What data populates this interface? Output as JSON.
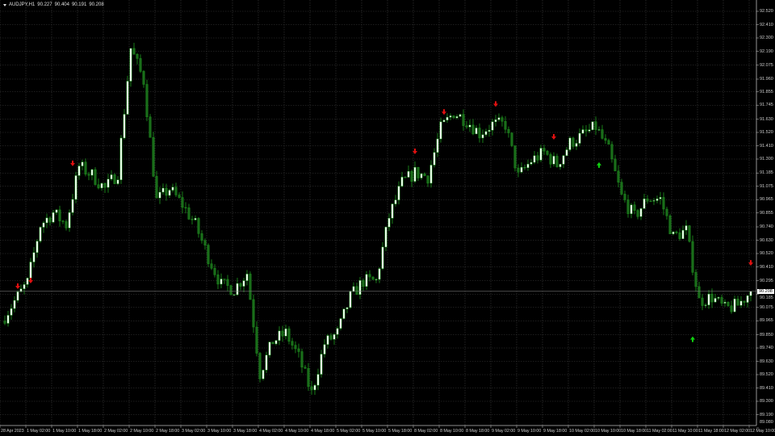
{
  "header": {
    "symbol": "AUDJPY,H1",
    "open": "90.227",
    "high": "90.404",
    "low": "90.191",
    "close": "90.208"
  },
  "colors": {
    "background": "#000000",
    "grid": "#3a3a3a",
    "candle": "#1f9a1f",
    "bull_body": "#e8ffe8",
    "bear_body": "#1a6e1a",
    "sell_arrow": "#e01010",
    "buy_arrow": "#10d010"
  },
  "chart_data": {
    "type": "candlestick",
    "timeframe": "H1",
    "current_price": "90.208",
    "ylim": [
      89.08,
      92.52
    ],
    "y_ticks": [
      "92.520",
      "92.410",
      "92.300",
      "92.190",
      "92.075",
      "91.960",
      "91.855",
      "91.745",
      "91.630",
      "91.520",
      "91.410",
      "91.300",
      "91.185",
      "91.075",
      "90.965",
      "90.855",
      "90.740",
      "90.630",
      "90.520",
      "90.410",
      "90.295",
      "90.185",
      "90.075",
      "89.965",
      "89.850",
      "89.740",
      "89.630",
      "89.520",
      "89.410",
      "89.300",
      "89.190",
      "89.080"
    ],
    "x_ticks": [
      "28 Apr 2023",
      "1 May 02:00",
      "1 May 10:00",
      "1 May 18:00",
      "2 May 02:00",
      "2 May 10:00",
      "2 May 18:00",
      "3 May 02:00",
      "3 May 10:00",
      "3 May 18:00",
      "4 May 02:00",
      "4 May 10:00",
      "4 May 18:00",
      "5 May 02:00",
      "5 May 10:00",
      "5 May 18:00",
      "8 May 02:00",
      "8 May 10:00",
      "8 May 18:00",
      "9 May 02:00",
      "9 May 10:00",
      "9 May 18:00",
      "10 May 02:00",
      "10 May 10:00",
      "10 May 18:00",
      "11 May 02:00",
      "11 May 10:00",
      "11 May 18:00",
      "12 May 02:00",
      "12 May 10:00"
    ],
    "closes_every_4_bars": [
      89.962,
      90.128,
      90.28,
      90.757,
      90.857,
      90.757,
      91.241,
      91.168,
      91.055,
      91.188,
      92.215,
      91.95,
      90.956,
      91.055,
      90.923,
      90.757,
      90.492,
      90.26,
      90.227,
      90.36,
      89.531,
      89.796,
      89.863,
      89.664,
      89.365,
      89.776,
      89.863,
      90.161,
      90.293,
      90.293,
      90.823,
      91.102,
      91.188,
      91.155,
      91.552,
      91.685,
      91.619,
      91.513,
      91.586,
      91.586,
      91.155,
      91.287,
      91.354,
      91.254,
      91.433,
      91.499,
      91.566,
      91.367,
      90.989,
      90.823,
      90.976,
      90.969,
      90.658,
      90.711,
      90.128,
      90.161,
      90.061,
      90.094,
      90.208
    ],
    "signals": [
      {
        "type": "sell",
        "bar": 5,
        "price": 90.247
      },
      {
        "type": "sell",
        "bar": 9,
        "price": 90.293
      },
      {
        "type": "sell",
        "bar": 22,
        "price": 91.261
      },
      {
        "type": "sell",
        "bar": 128,
        "price": 91.36
      },
      {
        "type": "sell",
        "bar": 137,
        "price": 91.685
      },
      {
        "type": "sell",
        "bar": 153,
        "price": 91.751
      },
      {
        "type": "sell",
        "bar": 171,
        "price": 91.48
      },
      {
        "type": "buy",
        "bar": 185,
        "price": 91.254
      },
      {
        "type": "buy",
        "bar": 214,
        "price": 89.816
      },
      {
        "type": "sell",
        "bar": 232,
        "price": 90.439
      }
    ]
  }
}
